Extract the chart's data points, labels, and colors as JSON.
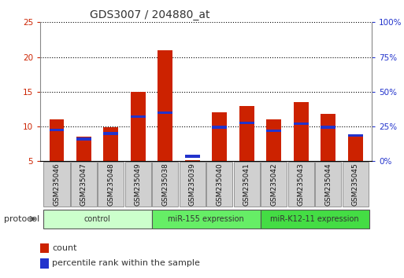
{
  "title": "GDS3007 / 204880_at",
  "samples": [
    "GSM235046",
    "GSM235047",
    "GSM235048",
    "GSM235049",
    "GSM235038",
    "GSM235039",
    "GSM235040",
    "GSM235041",
    "GSM235042",
    "GSM235043",
    "GSM235044",
    "GSM235045"
  ],
  "count_values": [
    11.0,
    8.5,
    9.9,
    15.0,
    21.0,
    5.2,
    12.0,
    13.0,
    11.0,
    13.5,
    11.8,
    8.7
  ],
  "percentile_values": [
    9.5,
    8.2,
    9.0,
    11.4,
    12.0,
    5.7,
    9.9,
    10.5,
    9.4,
    10.4,
    9.9,
    8.7
  ],
  "ylim_left": [
    5,
    25
  ],
  "ylim_right": [
    0,
    100
  ],
  "yticks_left": [
    5,
    10,
    15,
    20,
    25
  ],
  "yticks_right": [
    0,
    25,
    50,
    75,
    100
  ],
  "ytick_labels_right": [
    "0%",
    "25%",
    "50%",
    "75%",
    "100%"
  ],
  "count_color": "#cc2200",
  "percentile_color": "#2233cc",
  "bar_width": 0.55,
  "groups": [
    {
      "label": "control",
      "indices": [
        0,
        1,
        2,
        3
      ],
      "color": "#ccffcc"
    },
    {
      "label": "miR-155 expression",
      "indices": [
        4,
        5,
        6,
        7
      ],
      "color": "#66ee66"
    },
    {
      "label": "miR-K12-11 expression",
      "indices": [
        8,
        9,
        10,
        11
      ],
      "color": "#44dd44"
    }
  ],
  "protocol_label": "protocol",
  "grid_color": "#000000",
  "background_color": "#ffffff",
  "tick_label_color_left": "#cc2200",
  "tick_label_color_right": "#2233cc"
}
